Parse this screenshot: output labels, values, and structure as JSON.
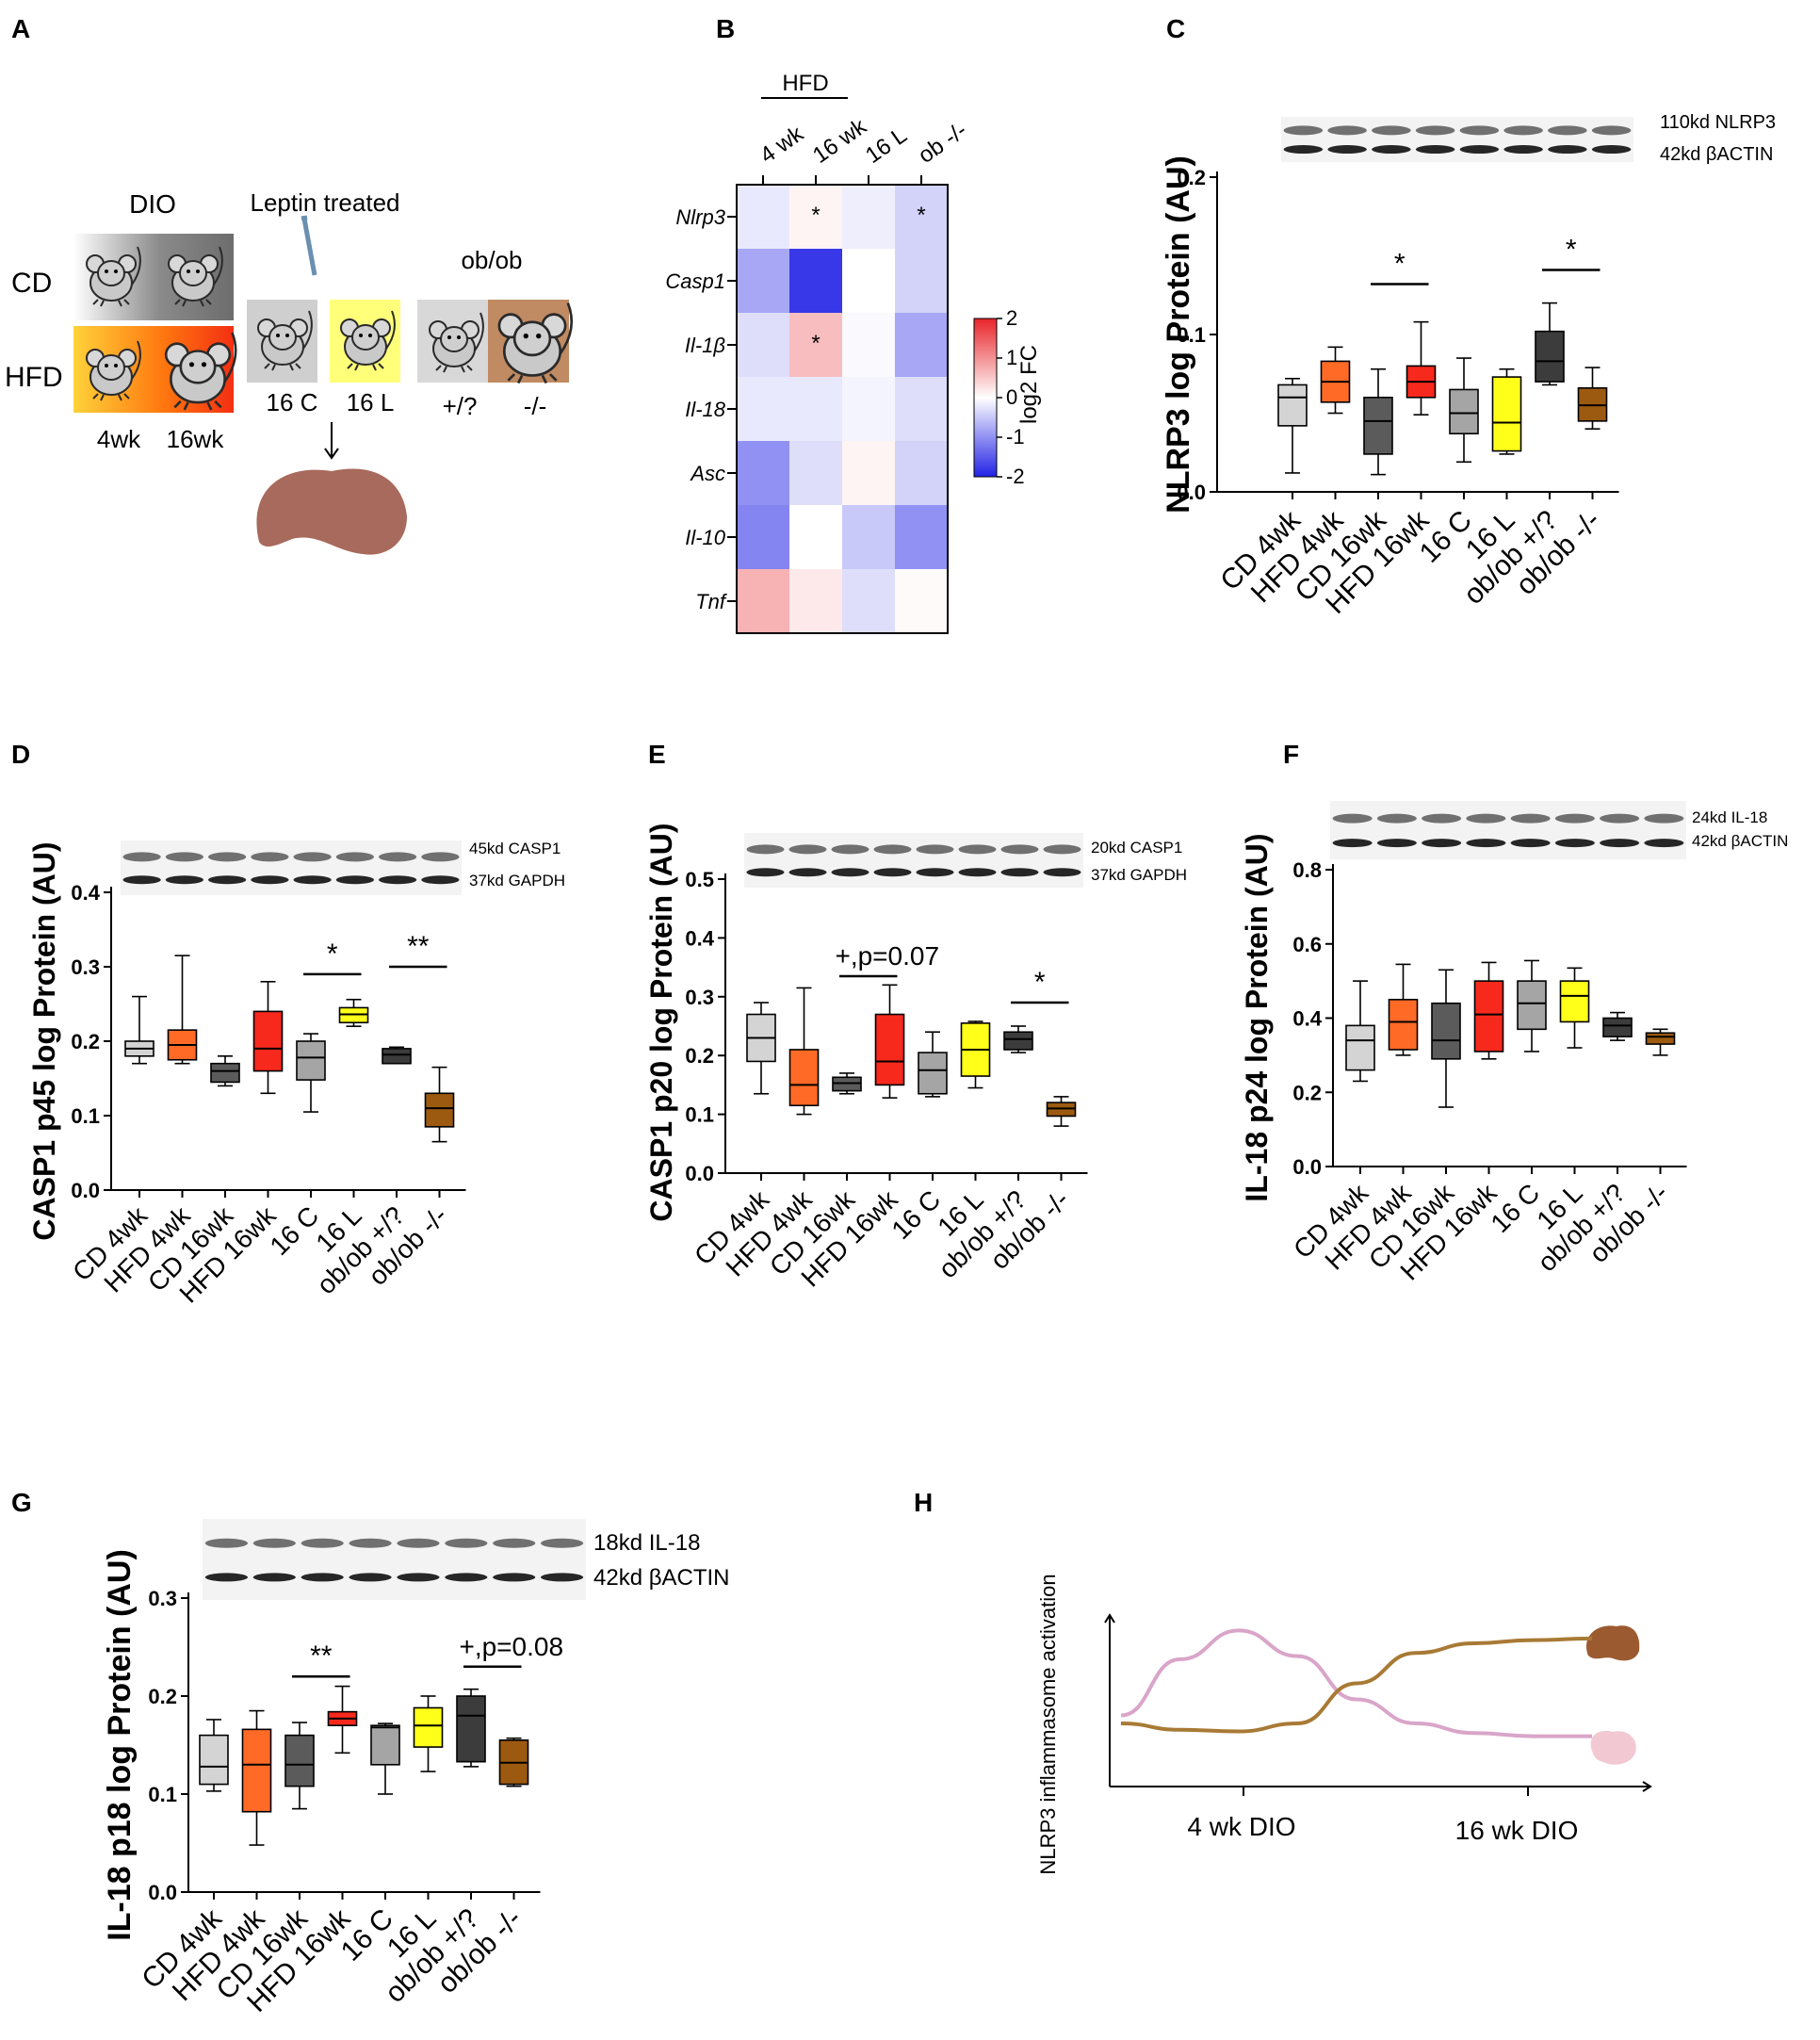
{
  "panel_letters": [
    "A",
    "B",
    "C",
    "D",
    "E",
    "F",
    "G",
    "H"
  ],
  "groups": [
    "CD 4wk",
    "HFD 4wk",
    "CD 16wk",
    "HFD 16wk",
    "16 C",
    "16 L",
    "ob/ob +/?",
    "ob/ob -/-"
  ],
  "colors": {
    "CD 4wk": "#d4d4d4",
    "HFD 4wk": "#ff6a26",
    "CD 16wk": "#5b5b5b",
    "HFD 16wk": "#f7281c",
    "16 C": "#a5a5a5",
    "16 L": "#ffff1a",
    "ob/ob +/?": "#3c3c3c",
    "ob/ob -/-": "#9c5a10",
    "liver": "#a86a5c",
    "pink_curve": "#d9a5c9",
    "brown_curve": "#a87a35"
  },
  "panelA": {
    "dio_label": "DIO",
    "leptin_label": "Leptin treated",
    "obob_label": "ob/ob",
    "cd_label": "CD",
    "hfd_label": "HFD",
    "wk4": "4wk",
    "wk16": "16wk",
    "c16": "16 C",
    "l16": "16 L",
    "het": "+/?",
    "ko": "-/-"
  },
  "panelB": {
    "hfd_label": "HFD",
    "columns": [
      "4 wk",
      "16 wk",
      "16 L",
      "ob -/-"
    ],
    "rows": [
      "Nlrp3",
      "Casp1",
      "Il-1β",
      "Il-18",
      "Asc",
      "Il-10",
      "Tnf"
    ],
    "values": [
      [
        -0.2,
        0.1,
        -0.15,
        -0.4
      ],
      [
        -0.8,
        -1.8,
        0.0,
        -0.4
      ],
      [
        -0.3,
        0.6,
        -0.05,
        -0.8
      ],
      [
        -0.2,
        -0.2,
        -0.1,
        -0.3
      ],
      [
        -1.0,
        -0.3,
        0.1,
        -0.4
      ],
      [
        -1.1,
        0.0,
        -0.5,
        -1.0
      ],
      [
        0.7,
        0.2,
        -0.3,
        0.05
      ]
    ],
    "significance": [
      [
        0,
        1
      ],
      [
        0,
        3
      ],
      [
        2,
        1
      ]
    ],
    "star": "*",
    "colorbar_ticks": [
      "2",
      "1",
      "0",
      "-1",
      "-2"
    ],
    "colorbar_range": [
      -2,
      2
    ],
    "colorbar_label": "log2 FC"
  },
  "chart_data": [
    {
      "panel": "C",
      "type": "boxplot",
      "ylabel": "NLRP3 log Protein (AU)",
      "ylim": [
        0,
        0.2
      ],
      "yticks": [
        "0.0",
        "0.1",
        "0.2"
      ],
      "ytick_values": [
        0,
        0.1,
        0.2
      ],
      "bands": [
        "110kd NLRP3",
        "42kd  βACTIN"
      ],
      "boxes": [
        {
          "group": "CD 4wk",
          "min": 0.012,
          "q1": 0.042,
          "median": 0.06,
          "q3": 0.068,
          "max": 0.072
        },
        {
          "group": "HFD 4wk",
          "min": 0.05,
          "q1": 0.057,
          "median": 0.07,
          "q3": 0.083,
          "max": 0.092
        },
        {
          "group": "CD 16wk",
          "min": 0.011,
          "q1": 0.024,
          "median": 0.045,
          "q3": 0.06,
          "max": 0.078
        },
        {
          "group": "HFD 16wk",
          "min": 0.049,
          "q1": 0.06,
          "median": 0.07,
          "q3": 0.08,
          "max": 0.108
        },
        {
          "group": "16 C",
          "min": 0.019,
          "q1": 0.037,
          "median": 0.05,
          "q3": 0.065,
          "max": 0.085
        },
        {
          "group": "16 L",
          "min": 0.024,
          "q1": 0.026,
          "median": 0.044,
          "q3": 0.073,
          "max": 0.078
        },
        {
          "group": "ob/ob +/?",
          "min": 0.068,
          "q1": 0.07,
          "median": 0.083,
          "q3": 0.102,
          "max": 0.12
        },
        {
          "group": "ob/ob -/-",
          "min": 0.04,
          "q1": 0.045,
          "median": 0.055,
          "q3": 0.066,
          "max": 0.079
        }
      ],
      "annotations": [
        {
          "from": 2,
          "to": 3,
          "y": 0.132,
          "label": "*"
        },
        {
          "from": 6,
          "to": 7,
          "y": 0.141,
          "label": "*"
        }
      ]
    },
    {
      "panel": "D",
      "type": "boxplot",
      "ylabel": "CASP1 p45 log Protein (AU)",
      "ylim": [
        0,
        0.4
      ],
      "yticks": [
        "0.0",
        "0.1",
        "0.2",
        "0.3",
        "0.4"
      ],
      "ytick_values": [
        0,
        0.1,
        0.2,
        0.3,
        0.4
      ],
      "bands": [
        "45kd CASP1",
        "37kd GAPDH"
      ],
      "boxes": [
        {
          "group": "CD 4wk",
          "min": 0.17,
          "q1": 0.18,
          "median": 0.19,
          "q3": 0.2,
          "max": 0.26
        },
        {
          "group": "HFD 4wk",
          "min": 0.17,
          "q1": 0.175,
          "median": 0.195,
          "q3": 0.215,
          "max": 0.315
        },
        {
          "group": "CD 16wk",
          "min": 0.14,
          "q1": 0.145,
          "median": 0.16,
          "q3": 0.17,
          "max": 0.18
        },
        {
          "group": "HFD 16wk",
          "min": 0.13,
          "q1": 0.16,
          "median": 0.19,
          "q3": 0.24,
          "max": 0.28
        },
        {
          "group": "16 C",
          "min": 0.105,
          "q1": 0.148,
          "median": 0.178,
          "q3": 0.2,
          "max": 0.21
        },
        {
          "group": "16 L",
          "min": 0.22,
          "q1": 0.225,
          "median": 0.236,
          "q3": 0.245,
          "max": 0.256
        },
        {
          "group": "ob/ob +/?",
          "min": 0.17,
          "q1": 0.17,
          "median": 0.182,
          "q3": 0.19,
          "max": 0.192
        },
        {
          "group": "ob/ob -/-",
          "min": 0.065,
          "q1": 0.085,
          "median": 0.11,
          "q3": 0.13,
          "max": 0.165
        }
      ],
      "annotations": [
        {
          "from": 4,
          "to": 5,
          "y": 0.29,
          "label": "*"
        },
        {
          "from": 6,
          "to": 7,
          "y": 0.3,
          "label": "**"
        }
      ]
    },
    {
      "panel": "E",
      "type": "boxplot",
      "ylabel": "CASP1 p20 log Protein (AU)",
      "ylim": [
        0,
        0.5
      ],
      "yticks": [
        "0.0",
        "0.1",
        "0.2",
        "0.3",
        "0.4",
        "0.5"
      ],
      "ytick_values": [
        0,
        0.1,
        0.2,
        0.3,
        0.4,
        0.5
      ],
      "bands": [
        "20kd CASP1",
        "37kd GAPDH"
      ],
      "boxes": [
        {
          "group": "CD 4wk",
          "min": 0.135,
          "q1": 0.19,
          "median": 0.23,
          "q3": 0.27,
          "max": 0.29
        },
        {
          "group": "HFD 4wk",
          "min": 0.1,
          "q1": 0.115,
          "median": 0.15,
          "q3": 0.21,
          "max": 0.315
        },
        {
          "group": "CD 16wk",
          "min": 0.135,
          "q1": 0.14,
          "median": 0.153,
          "q3": 0.163,
          "max": 0.17
        },
        {
          "group": "HFD 16wk",
          "min": 0.128,
          "q1": 0.15,
          "median": 0.19,
          "q3": 0.27,
          "max": 0.32
        },
        {
          "group": "16 C",
          "min": 0.13,
          "q1": 0.135,
          "median": 0.175,
          "q3": 0.205,
          "max": 0.24
        },
        {
          "group": "16 L",
          "min": 0.145,
          "q1": 0.165,
          "median": 0.21,
          "q3": 0.255,
          "max": 0.258
        },
        {
          "group": "ob/ob +/?",
          "min": 0.205,
          "q1": 0.21,
          "median": 0.228,
          "q3": 0.24,
          "max": 0.25
        },
        {
          "group": "ob/ob -/-",
          "min": 0.08,
          "q1": 0.097,
          "median": 0.11,
          "q3": 0.12,
          "max": 0.13
        }
      ],
      "annotations": [
        {
          "from": 2,
          "to": 3,
          "y": 0.335,
          "label": "+,p=0.07"
        },
        {
          "from": 6,
          "to": 7,
          "y": 0.29,
          "label": "*"
        }
      ]
    },
    {
      "panel": "F",
      "type": "boxplot",
      "ylabel": "IL-18 p24 log Protein (AU)",
      "ylim": [
        0,
        0.8
      ],
      "yticks": [
        "0.0",
        "0.2",
        "0.4",
        "0.6",
        "0.8"
      ],
      "ytick_values": [
        0,
        0.2,
        0.4,
        0.6,
        0.8
      ],
      "bands": [
        "24kd IL-18",
        "42kd    βACTIN"
      ],
      "boxes": [
        {
          "group": "CD 4wk",
          "min": 0.23,
          "q1": 0.26,
          "median": 0.34,
          "q3": 0.38,
          "max": 0.5
        },
        {
          "group": "HFD 4wk",
          "min": 0.3,
          "q1": 0.315,
          "median": 0.39,
          "q3": 0.45,
          "max": 0.545
        },
        {
          "group": "CD 16wk",
          "min": 0.16,
          "q1": 0.29,
          "median": 0.34,
          "q3": 0.44,
          "max": 0.53
        },
        {
          "group": "HFD 16wk",
          "min": 0.29,
          "q1": 0.31,
          "median": 0.41,
          "q3": 0.5,
          "max": 0.55
        },
        {
          "group": "16 C",
          "min": 0.31,
          "q1": 0.37,
          "median": 0.44,
          "q3": 0.5,
          "max": 0.555
        },
        {
          "group": "16 L",
          "min": 0.32,
          "q1": 0.39,
          "median": 0.46,
          "q3": 0.5,
          "max": 0.535
        },
        {
          "group": "ob/ob +/?",
          "min": 0.34,
          "q1": 0.35,
          "median": 0.38,
          "q3": 0.4,
          "max": 0.415
        },
        {
          "group": "ob/ob -/-",
          "min": 0.3,
          "q1": 0.33,
          "median": 0.35,
          "q3": 0.36,
          "max": 0.37
        }
      ],
      "annotations": []
    },
    {
      "panel": "G",
      "type": "boxplot",
      "ylabel": "IL-18 p18 log Protein (AU)",
      "ylim": [
        0,
        0.3
      ],
      "yticks": [
        "0.0",
        "0.1",
        "0.2",
        "0.3"
      ],
      "ytick_values": [
        0,
        0.1,
        0.2,
        0.3
      ],
      "bands": [
        "18kd IL-18",
        "42kd βACTIN"
      ],
      "boxes": [
        {
          "group": "CD 4wk",
          "min": 0.103,
          "q1": 0.11,
          "median": 0.128,
          "q3": 0.16,
          "max": 0.176
        },
        {
          "group": "HFD 4wk",
          "min": 0.048,
          "q1": 0.082,
          "median": 0.13,
          "q3": 0.166,
          "max": 0.185
        },
        {
          "group": "CD 16wk",
          "min": 0.085,
          "q1": 0.108,
          "median": 0.13,
          "q3": 0.16,
          "max": 0.173
        },
        {
          "group": "HFD 16wk",
          "min": 0.142,
          "q1": 0.17,
          "median": 0.177,
          "q3": 0.184,
          "max": 0.21
        },
        {
          "group": "16 C",
          "min": 0.1,
          "q1": 0.13,
          "median": 0.168,
          "q3": 0.17,
          "max": 0.172
        },
        {
          "group": "16 L",
          "min": 0.123,
          "q1": 0.148,
          "median": 0.17,
          "q3": 0.188,
          "max": 0.2
        },
        {
          "group": "ob/ob +/?",
          "min": 0.128,
          "q1": 0.133,
          "median": 0.18,
          "q3": 0.2,
          "max": 0.207
        },
        {
          "group": "ob/ob -/-",
          "min": 0.108,
          "q1": 0.11,
          "median": 0.132,
          "q3": 0.155,
          "max": 0.157
        }
      ],
      "annotations": [
        {
          "from": 2,
          "to": 3,
          "y": 0.22,
          "label": "**"
        },
        {
          "from": 6,
          "to": 7,
          "y": 0.23,
          "label": "+,p=0.08"
        }
      ]
    },
    {
      "panel": "H",
      "type": "line",
      "ylabel": "NLRP3 inflammasome activation",
      "xticks": [
        "4 wk DIO",
        "16 wk DIO"
      ],
      "x": [
        0,
        0.5,
        1,
        1.5,
        2,
        2.5,
        3,
        3.5,
        4
      ],
      "series": [
        {
          "name": "adipose",
          "color": "pink_curve",
          "values": [
            0.35,
            0.7,
            0.88,
            0.72,
            0.45,
            0.3,
            0.24,
            0.22,
            0.22
          ]
        },
        {
          "name": "liver",
          "color": "brown_curve",
          "values": [
            0.3,
            0.26,
            0.25,
            0.3,
            0.55,
            0.74,
            0.8,
            0.82,
            0.83
          ]
        }
      ]
    }
  ]
}
